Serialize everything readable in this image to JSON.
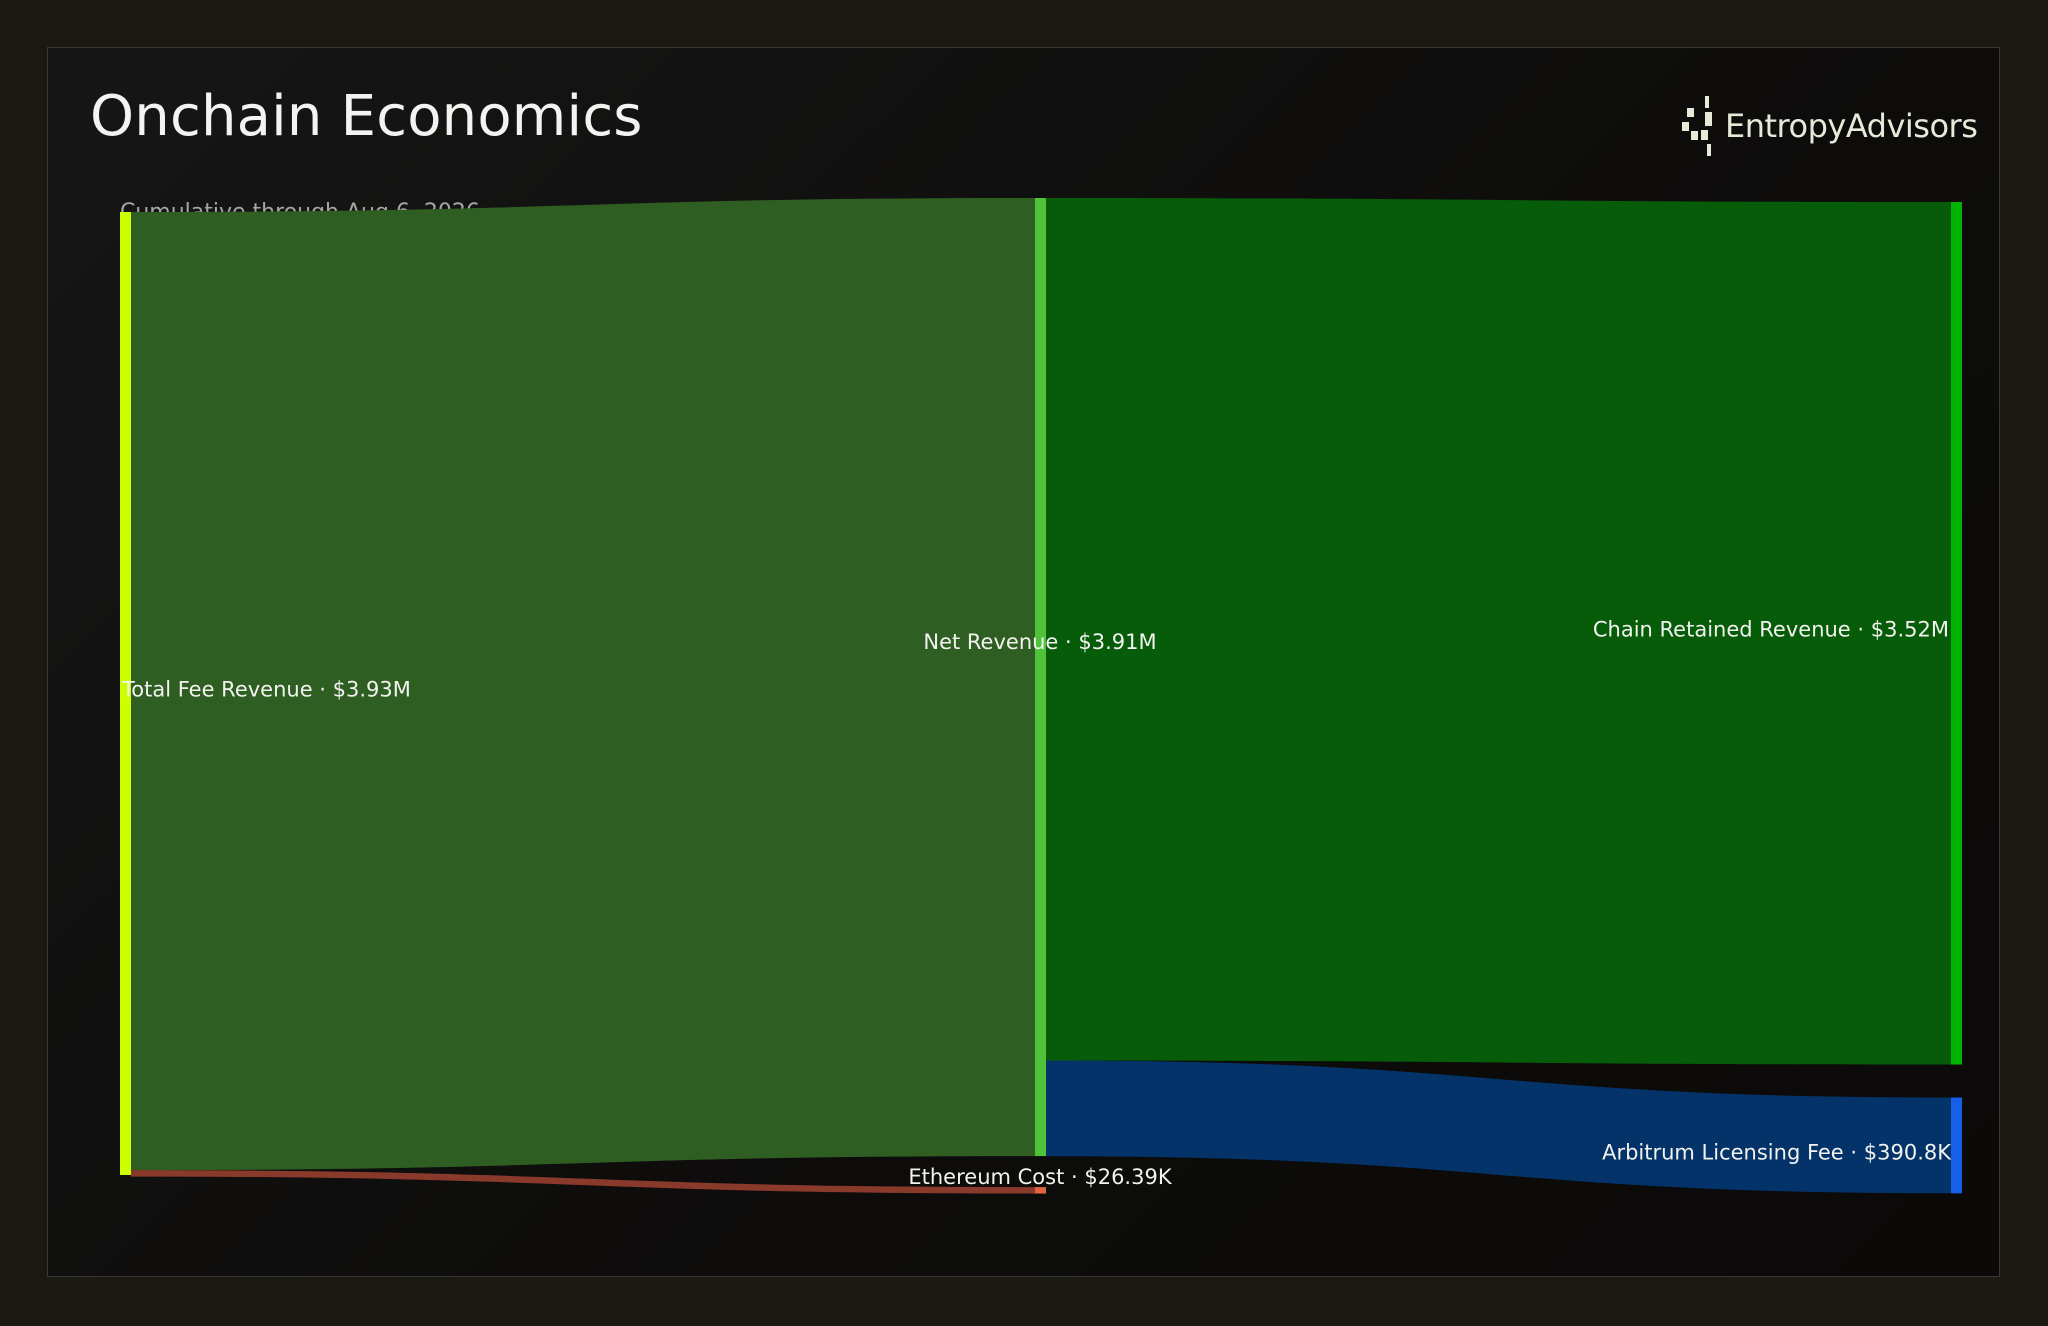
{
  "header": {
    "title": "Onchain Economics",
    "subtitle": "Cumulative through Aug 6, 2026"
  },
  "brand": {
    "name_part1": "Entropy",
    "name_part2": "Advisors",
    "icon": "entropy-logo-icon"
  },
  "chart_data": {
    "type": "sankey",
    "nodes": [
      {
        "id": "total",
        "label": "Total Fee Revenue · $3.93M",
        "value": 3930000,
        "column": 0,
        "color": "#ccff00"
      },
      {
        "id": "net",
        "label": "Net Revenue · $3.91M",
        "value": 3910000,
        "column": 1,
        "color": "#4fc23a"
      },
      {
        "id": "eth",
        "label": "Ethereum Cost · $26.39K",
        "value": 26390,
        "column": 1,
        "color": "#e0623e"
      },
      {
        "id": "chain",
        "label": "Chain Retained Revenue · $3.52M",
        "value": 3520000,
        "column": 2,
        "color": "#00b300"
      },
      {
        "id": "arb",
        "label": "Arbitrum Licensing Fee · $390.8K",
        "value": 390800,
        "column": 2,
        "color": "#1560e8"
      }
    ],
    "links": [
      {
        "source": "total",
        "target": "net",
        "value": 3910000,
        "color": "#2f5e22"
      },
      {
        "source": "total",
        "target": "eth",
        "value": 26390,
        "color": "#8a3a2a"
      },
      {
        "source": "net",
        "target": "chain",
        "value": 3520000,
        "color": "#075c0a"
      },
      {
        "source": "net",
        "target": "arb",
        "value": 390800,
        "color": "#04336a"
      }
    ]
  }
}
